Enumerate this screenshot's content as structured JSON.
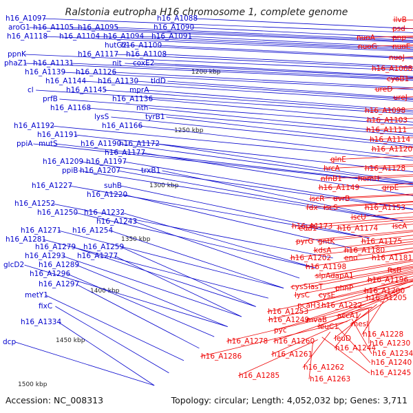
{
  "title": "Ralstonia eutropha H16 chromosome 1, complete genome",
  "footer": {
    "accession": "Accession: NC_008313",
    "topology": "Topology: circular; Length: 4,052,032 bp; Genes: 3,711"
  },
  "colors": {
    "reverse_strand": "#0000cc",
    "forward_strand": "#ee0000",
    "backbone": "#888888",
    "gc_marks": "#2a8a2a"
  },
  "kbp_ticks": [
    "1200 kbp",
    "1250 kbp",
    "1300 kbp",
    "1350 kbp",
    "1400 kbp",
    "1450 kbp",
    "1500 kbp"
  ],
  "left_labels": [
    "h16_A1097",
    "h16_A1088",
    "aroG1",
    "h16_A1105",
    "h16_A1095",
    "h16_A1090",
    "h16_A1118",
    "h16_A1104",
    "h16_A1094",
    "h16_A1091",
    "hutG2",
    "h16_A1100",
    "ppnK",
    "h16_A1117",
    "h16_A1108",
    "phaZ1",
    "h16_A1131",
    "h16_A1139",
    "h16_A1126",
    "nit",
    "coxE2",
    "h16_A1144",
    "h16_A1130",
    "tldD",
    "cl",
    "h16_A1145",
    "mprA",
    "prfB",
    "h16_A1136",
    "h16_A1168",
    "nth",
    "lysS",
    "tyrB1",
    "h16_A1192",
    "h16_A1166",
    "h16_A1191",
    "h16_A1172",
    "ppiA",
    "mutS",
    "h16_A1190",
    "h16_A1177",
    "h16_A1209",
    "h16_A1197",
    "ppiB",
    "h16_A1207",
    "trxB1",
    "h16_A1227",
    "suhB",
    "h16_A1220",
    "h16_A1252",
    "h16_A1250",
    "h16_A1232",
    "h16_A1243",
    "h16_A1271",
    "h16_A1254",
    "h16_A1281",
    "h16_A1279",
    "h16_A1259",
    "h16_A1293",
    "h16_A1277",
    "glcD2",
    "h16_A1289",
    "h16_A1296",
    "h16_A1297",
    "metY1",
    "fixC",
    "h16_A1334",
    "dcp"
  ],
  "right_labels": [
    "ilvB",
    "psd",
    "nuoA",
    "pnp",
    "nuoG",
    "nuoE",
    "nuoJ",
    "h16_A1068",
    "cyoB1",
    "ureD",
    "ureJ",
    "h16_A1098",
    "h16_A1103",
    "h16_A1111",
    "h16_A1114",
    "h16_A1120",
    "glnE",
    "hrcA",
    "h16_A1128",
    "nfnB1",
    "hemH",
    "h16_A1149",
    "grpE",
    "iscR",
    "uvrB",
    "fdx",
    "iscS",
    "h16_A1153",
    "iscU",
    "h16_A1173",
    "iscA",
    "edd1",
    "h16_A1174",
    "pyrG",
    "gntK",
    "h16_A1175",
    "kdsA",
    "h16_A1180",
    "eno",
    "h16_A1202",
    "h16_A1181",
    "h16_A1198",
    "ftsB",
    "slpA",
    "dapA1",
    "h16_A1196",
    "phnP",
    "h16_A1200",
    "cysS",
    "lasT",
    "h16_A1205",
    "lysC",
    "cysE",
    "pcaH3",
    "h16_A1222",
    "accA1",
    "h16_A1253",
    "h16_A1249",
    "mvaB",
    "mesJ",
    "leuC1",
    "pyc",
    "h16_A1228",
    "leuD",
    "h16_A1230",
    "h16_A1278",
    "h16_A1260",
    "h16_A1244",
    "h16_A1234",
    "h16_A1286",
    "h16_A1261",
    "h16_A1240",
    "h16_A1262",
    "h16_A1245",
    "h16_A1285",
    "h16_A1263"
  ]
}
